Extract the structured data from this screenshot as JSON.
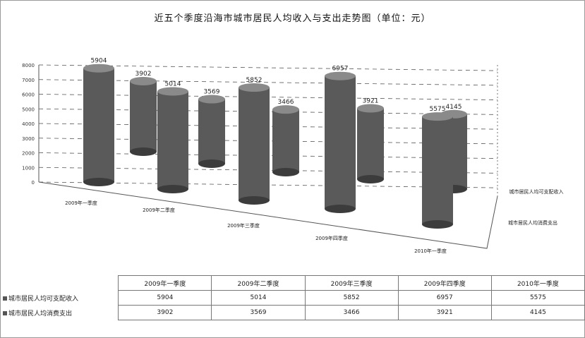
{
  "chart_data": {
    "type": "bar",
    "title": "近五个季度沿海市城市居民人均收入与支出走势图（单位：元）",
    "categories": [
      "2009年一季度",
      "2009年二季度",
      "2009年三季度",
      "2009年四季度",
      "2010年一季度"
    ],
    "series": [
      {
        "name": "城市居民人均可支配收入",
        "values": [
          5904,
          5014,
          5852,
          6957,
          5575
        ]
      },
      {
        "name": "城市居民人均消费支出",
        "values": [
          3902,
          3569,
          3466,
          3921,
          4145
        ]
      }
    ],
    "data_labels": {
      "income": [
        "5904",
        "5014",
        "5852",
        "6957",
        "5575"
      ],
      "spending": [
        "3902",
        "3569",
        "3466",
        "3921",
        "4145"
      ]
    },
    "yticks": [
      "8000",
      "7000",
      "6000",
      "5000",
      "4000",
      "3000",
      "2000",
      "1000",
      "0"
    ],
    "ylim": [
      0,
      8000
    ],
    "grid": true,
    "legend": "table"
  },
  "table": {
    "headers": [
      "2009年一季度",
      "2009年二季度",
      "2009年三季度",
      "2009年四季度",
      "2010年一季度"
    ],
    "rows": [
      {
        "label": "城市居民人均可支配收入",
        "cells": [
          "5904",
          "5014",
          "5852",
          "6957",
          "5575"
        ]
      },
      {
        "label": "城市居民人均消费支出",
        "cells": [
          "3902",
          "3569",
          "3466",
          "3921",
          "4145"
        ]
      }
    ]
  },
  "colors": {
    "bar": "#5a5a5a",
    "bar_dark": "#3c3c3c",
    "bar_light": "#8a8a8a",
    "grid": "#555555"
  }
}
